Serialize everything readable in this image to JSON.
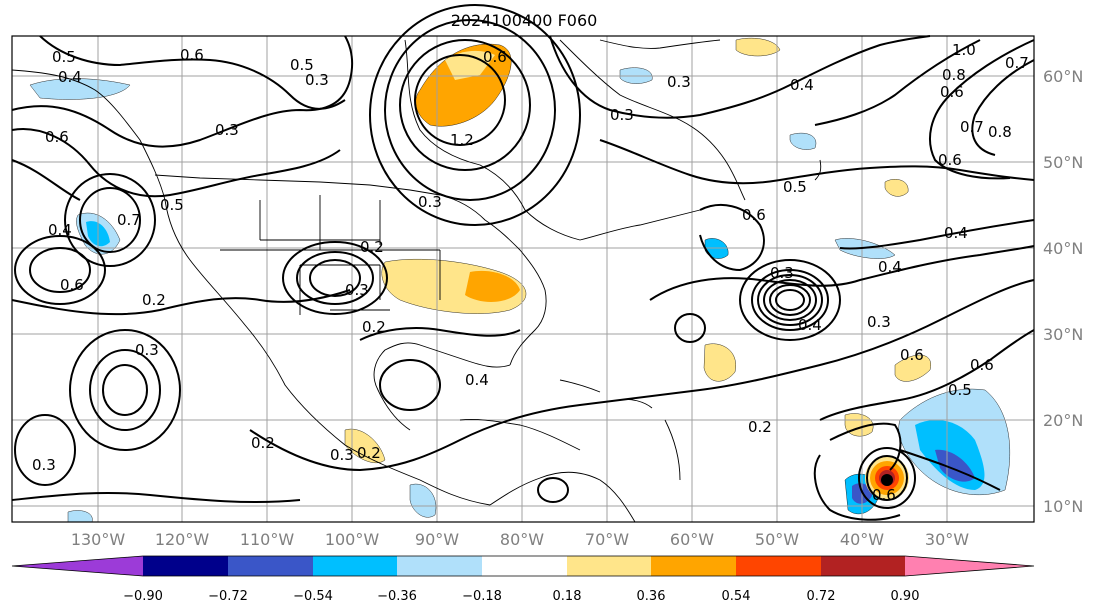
{
  "title": "2024100400 F060",
  "map": {
    "lon_labels": [
      "130°W",
      "120°W",
      "110°W",
      "100°W",
      "90°W",
      "80°W",
      "70°W",
      "60°W",
      "50°W",
      "40°W",
      "30°W"
    ],
    "lat_labels": [
      "60°N",
      "50°N",
      "40°N",
      "30°N",
      "20°N",
      "10°N"
    ],
    "grid": true,
    "contour_labels": [
      {
        "text": "0.5"
      },
      {
        "text": "0.4"
      },
      {
        "text": "0.6"
      },
      {
        "text": "0.5"
      },
      {
        "text": "0.3"
      },
      {
        "text": "0.6"
      },
      {
        "text": "0.3"
      },
      {
        "text": "0.4"
      },
      {
        "text": "0.7"
      },
      {
        "text": "0.5"
      },
      {
        "text": "0.6"
      },
      {
        "text": "0.2"
      },
      {
        "text": "0.3"
      },
      {
        "text": "0.3"
      },
      {
        "text": "0.3"
      },
      {
        "text": "0.2"
      },
      {
        "text": "0.2"
      },
      {
        "text": "0.3"
      },
      {
        "text": "0.6"
      },
      {
        "text": "1.2"
      },
      {
        "text": "0.3"
      },
      {
        "text": "0.3"
      },
      {
        "text": "0.3"
      },
      {
        "text": "0.4"
      },
      {
        "text": "0.2"
      },
      {
        "text": "0.4"
      },
      {
        "text": "0.3"
      },
      {
        "text": "0.2"
      },
      {
        "text": "0.5"
      },
      {
        "text": "0.6"
      },
      {
        "text": "0.4"
      },
      {
        "text": "0.3"
      },
      {
        "text": "0.2"
      },
      {
        "text": "0.6"
      },
      {
        "text": "0.4"
      },
      {
        "text": "0.6"
      },
      {
        "text": "1.0"
      },
      {
        "text": "0.8"
      },
      {
        "text": "0.7"
      },
      {
        "text": "0.6"
      },
      {
        "text": "0.7"
      },
      {
        "text": "0.8"
      },
      {
        "text": "0.4"
      },
      {
        "text": "0.5"
      },
      {
        "text": "0.6"
      },
      {
        "text": "0.6"
      }
    ]
  },
  "colorbar": {
    "ticks": [
      "−0.90",
      "−0.72",
      "−0.54",
      "−0.36",
      "−0.18",
      "0.18",
      "0.36",
      "0.54",
      "0.72",
      "0.90"
    ],
    "colors": {
      "under": "#9c3bd8",
      "c1": "#8a2fd0",
      "c2": "#00008b",
      "c3": "#3a56c8",
      "c4": "#00bfff",
      "c5": "#b0e0fa",
      "c6": "#ffffff",
      "c7": "#ffe58a",
      "c8": "#ffa500",
      "c9": "#ff4500",
      "c10": "#b22222",
      "over": "#ff80b0"
    }
  }
}
